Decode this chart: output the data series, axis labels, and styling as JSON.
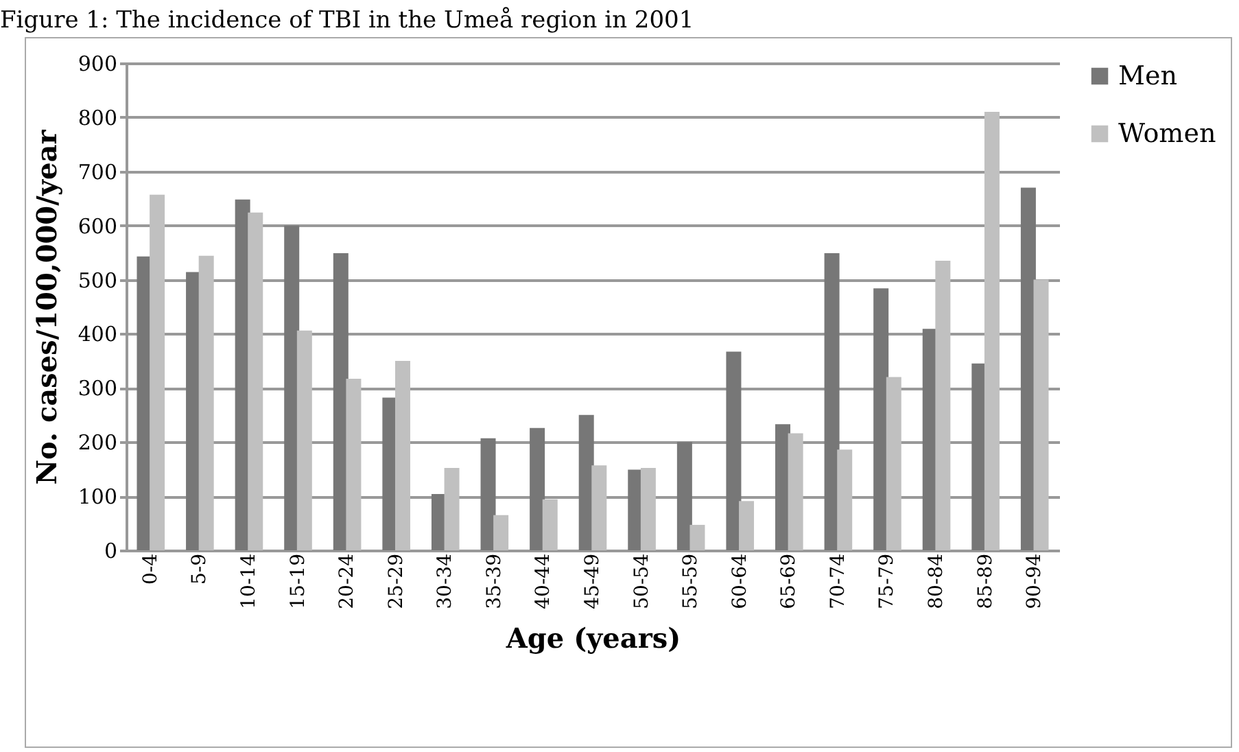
{
  "chart_data": {
    "type": "bar",
    "title": "Figure 1: The incidence of TBI in the Umeå region in 2001",
    "xlabel": "Age (years)",
    "ylabel": "No. cases/100,000/year",
    "categories": [
      "0-4",
      "5-9",
      "10-14",
      "15-19",
      "20-24",
      "25-29",
      "30-34",
      "35-39",
      "40-44",
      "45-49",
      "50-54",
      "55-59",
      "60-64",
      "65-69",
      "70-74",
      "75-79",
      "80-84",
      "85-89",
      "90-94"
    ],
    "series": [
      {
        "name": "Men",
        "color": "#777777",
        "values": [
          543,
          514,
          648,
          600,
          549,
          282,
          104,
          207,
          226,
          250,
          149,
          200,
          367,
          233,
          549,
          484,
          409,
          345,
          670
        ]
      },
      {
        "name": "Women",
        "color": "#c0c0c0",
        "values": [
          657,
          544,
          624,
          406,
          317,
          350,
          152,
          65,
          94,
          157,
          152,
          47,
          91,
          216,
          186,
          320,
          535,
          810,
          500
        ]
      }
    ],
    "ylim": [
      0,
      900
    ],
    "yticks": [
      0,
      100,
      200,
      300,
      400,
      500,
      600,
      700,
      800,
      900
    ],
    "grid": "y",
    "legend": "right"
  }
}
